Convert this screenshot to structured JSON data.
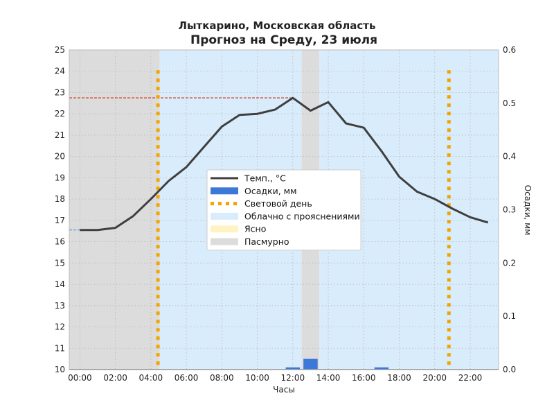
{
  "chart_data": {
    "type": "line",
    "title": "Лыткарино, Московская область",
    "subtitle": "Прогноз на Среду, 23 июля",
    "xlabel": "Часы",
    "ylabel_left": "",
    "ylabel_right": "Осадки, мм",
    "xlim": [
      -0.6,
      23.6
    ],
    "ylim_left": [
      10,
      25
    ],
    "ylim_right": [
      0,
      0.6
    ],
    "x_ticks": [
      0,
      2,
      4,
      6,
      8,
      10,
      12,
      14,
      16,
      18,
      20,
      22
    ],
    "x_tick_labels": [
      "00:00",
      "02:00",
      "04:00",
      "06:00",
      "08:00",
      "10:00",
      "12:00",
      "14:00",
      "16:00",
      "18:00",
      "20:00",
      "22:00"
    ],
    "y_ticks_left": [
      10,
      11,
      12,
      13,
      14,
      15,
      16,
      17,
      18,
      19,
      20,
      21,
      22,
      23,
      24,
      25
    ],
    "y_ticks_right": [
      0.0,
      0.1,
      0.2,
      0.3,
      0.4,
      0.5,
      0.6
    ],
    "y_tick_labels_right": [
      "0.0",
      "0.1",
      "0.2",
      "0.3",
      "0.4",
      "0.5",
      "0.6"
    ],
    "grid": true,
    "legend_position": "center",
    "series": [
      {
        "name": "Темп., °C",
        "type": "line",
        "axis": "left",
        "color": "#3f3f3f",
        "x": [
          0,
          1,
          2,
          3,
          4,
          5,
          6,
          7,
          8,
          9,
          10,
          11,
          12,
          13,
          14,
          15,
          16,
          17,
          18,
          19,
          20,
          21,
          22,
          23
        ],
        "values": [
          16.55,
          16.55,
          16.65,
          17.2,
          18.0,
          18.85,
          19.5,
          20.45,
          21.4,
          21.95,
          22.0,
          22.2,
          22.75,
          22.15,
          22.55,
          21.55,
          21.35,
          20.25,
          19.05,
          18.35,
          18.0,
          17.55,
          17.15,
          16.9
        ]
      },
      {
        "name": "Осадки, мм",
        "type": "bar",
        "axis": "right",
        "color": "#3c78d8",
        "x": [
          12,
          13,
          17
        ],
        "values": [
          0.004,
          0.02,
          0.004
        ]
      }
    ],
    "reference_lines": [
      {
        "kind": "horizontal",
        "axis": "left",
        "value": 22.75,
        "from_x": -0.6,
        "to_x": 12,
        "color": "#cc3311",
        "style": "dashed"
      },
      {
        "kind": "horizontal",
        "axis": "left",
        "value": 16.55,
        "from_x": -0.6,
        "to_x": 0,
        "color": "#4a90d9",
        "style": "dashed"
      },
      {
        "kind": "horizontal",
        "axis": "right",
        "value": 0,
        "from_x": -0.6,
        "to_x": 23.6,
        "color": "#444444",
        "style": "solid"
      }
    ],
    "daylight": {
      "name": "Световой день",
      "color": "#f0a500",
      "sunrise": 4.4,
      "sunset": 20.8
    },
    "bands": [
      {
        "from": -0.6,
        "to": 4.5,
        "label": "Пасмурно",
        "color": "#dcdcdc"
      },
      {
        "from": 4.5,
        "to": 12.5,
        "label": "Облачно с прояснениями",
        "color": "#d8ecfb"
      },
      {
        "from": 12.5,
        "to": 13.5,
        "label": "Пасмурно",
        "color": "#dcdcdc"
      },
      {
        "from": 13.5,
        "to": 23.6,
        "label": "Облачно с прояснениями",
        "color": "#d8ecfb"
      }
    ],
    "legend": [
      {
        "label": "Темп., °C",
        "kind": "line",
        "color": "#3f3f3f"
      },
      {
        "label": "Осадки, мм",
        "kind": "bar",
        "color": "#3c78d8"
      },
      {
        "label": "Световой день",
        "kind": "dotted",
        "color": "#f0a500"
      },
      {
        "label": "Облачно с прояснениями",
        "kind": "patch",
        "color": "#d8ecfb"
      },
      {
        "label": "Ясно",
        "kind": "patch",
        "color": "#fff3c4"
      },
      {
        "label": "Пасмурно",
        "kind": "patch",
        "color": "#dcdcdc"
      }
    ]
  }
}
